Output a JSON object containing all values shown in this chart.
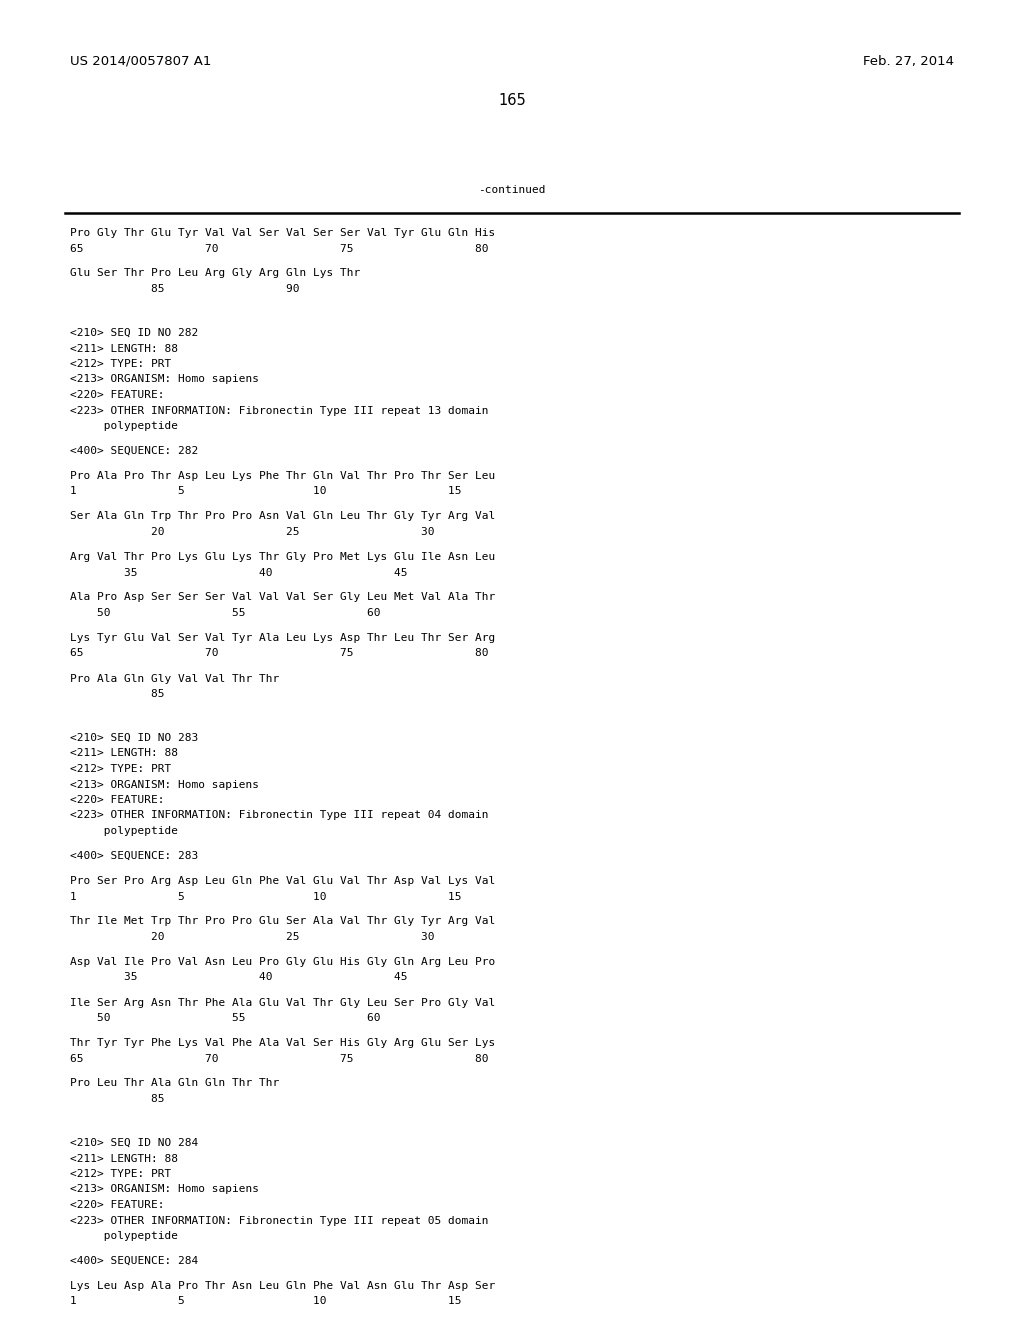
{
  "header_left": "US 2014/0057807 A1",
  "header_right": "Feb. 27, 2014",
  "page_number": "165",
  "continued_label": "-continued",
  "background_color": "#ffffff",
  "text_color": "#000000",
  "font_size": 8.0,
  "header_font_size": 9.5,
  "page_num_font_size": 10.5,
  "content": [
    {
      "type": "seq_line",
      "text": "Pro Gly Thr Glu Tyr Val Val Ser Val Ser Ser Val Tyr Glu Gln His"
    },
    {
      "type": "num_line",
      "text": "65                  70                  75                  80"
    },
    {
      "type": "blank"
    },
    {
      "type": "seq_line",
      "text": "Glu Ser Thr Pro Leu Arg Gly Arg Gln Lys Thr"
    },
    {
      "type": "num_line",
      "text": "            85                  90"
    },
    {
      "type": "blank"
    },
    {
      "type": "blank"
    },
    {
      "type": "blank"
    },
    {
      "type": "meta_line",
      "text": "<210> SEQ ID NO 282"
    },
    {
      "type": "meta_line",
      "text": "<211> LENGTH: 88"
    },
    {
      "type": "meta_line",
      "text": "<212> TYPE: PRT"
    },
    {
      "type": "meta_line",
      "text": "<213> ORGANISM: Homo sapiens"
    },
    {
      "type": "meta_line",
      "text": "<220> FEATURE:"
    },
    {
      "type": "meta_line",
      "text": "<223> OTHER INFORMATION: Fibronectin Type III repeat 13 domain"
    },
    {
      "type": "meta_line",
      "text": "     polypeptide"
    },
    {
      "type": "blank"
    },
    {
      "type": "meta_line",
      "text": "<400> SEQUENCE: 282"
    },
    {
      "type": "blank"
    },
    {
      "type": "seq_line",
      "text": "Pro Ala Pro Thr Asp Leu Lys Phe Thr Gln Val Thr Pro Thr Ser Leu"
    },
    {
      "type": "num_line",
      "text": "1               5                   10                  15"
    },
    {
      "type": "blank"
    },
    {
      "type": "seq_line",
      "text": "Ser Ala Gln Trp Thr Pro Pro Asn Val Gln Leu Thr Gly Tyr Arg Val"
    },
    {
      "type": "num_line",
      "text": "            20                  25                  30"
    },
    {
      "type": "blank"
    },
    {
      "type": "seq_line",
      "text": "Arg Val Thr Pro Lys Glu Lys Thr Gly Pro Met Lys Glu Ile Asn Leu"
    },
    {
      "type": "num_line",
      "text": "        35                  40                  45"
    },
    {
      "type": "blank"
    },
    {
      "type": "seq_line",
      "text": "Ala Pro Asp Ser Ser Ser Val Val Val Ser Gly Leu Met Val Ala Thr"
    },
    {
      "type": "num_line",
      "text": "    50                  55                  60"
    },
    {
      "type": "blank"
    },
    {
      "type": "seq_line",
      "text": "Lys Tyr Glu Val Ser Val Tyr Ala Leu Lys Asp Thr Leu Thr Ser Arg"
    },
    {
      "type": "num_line",
      "text": "65                  70                  75                  80"
    },
    {
      "type": "blank"
    },
    {
      "type": "seq_line",
      "text": "Pro Ala Gln Gly Val Val Thr Thr"
    },
    {
      "type": "num_line",
      "text": "            85"
    },
    {
      "type": "blank"
    },
    {
      "type": "blank"
    },
    {
      "type": "blank"
    },
    {
      "type": "meta_line",
      "text": "<210> SEQ ID NO 283"
    },
    {
      "type": "meta_line",
      "text": "<211> LENGTH: 88"
    },
    {
      "type": "meta_line",
      "text": "<212> TYPE: PRT"
    },
    {
      "type": "meta_line",
      "text": "<213> ORGANISM: Homo sapiens"
    },
    {
      "type": "meta_line",
      "text": "<220> FEATURE:"
    },
    {
      "type": "meta_line",
      "text": "<223> OTHER INFORMATION: Fibronectin Type III repeat 04 domain"
    },
    {
      "type": "meta_line",
      "text": "     polypeptide"
    },
    {
      "type": "blank"
    },
    {
      "type": "meta_line",
      "text": "<400> SEQUENCE: 283"
    },
    {
      "type": "blank"
    },
    {
      "type": "seq_line",
      "text": "Pro Ser Pro Arg Asp Leu Gln Phe Val Glu Val Thr Asp Val Lys Val"
    },
    {
      "type": "num_line",
      "text": "1               5                   10                  15"
    },
    {
      "type": "blank"
    },
    {
      "type": "seq_line",
      "text": "Thr Ile Met Trp Thr Pro Pro Glu Ser Ala Val Thr Gly Tyr Arg Val"
    },
    {
      "type": "num_line",
      "text": "            20                  25                  30"
    },
    {
      "type": "blank"
    },
    {
      "type": "seq_line",
      "text": "Asp Val Ile Pro Val Asn Leu Pro Gly Glu His Gly Gln Arg Leu Pro"
    },
    {
      "type": "num_line",
      "text": "        35                  40                  45"
    },
    {
      "type": "blank"
    },
    {
      "type": "seq_line",
      "text": "Ile Ser Arg Asn Thr Phe Ala Glu Val Thr Gly Leu Ser Pro Gly Val"
    },
    {
      "type": "num_line",
      "text": "    50                  55                  60"
    },
    {
      "type": "blank"
    },
    {
      "type": "seq_line",
      "text": "Thr Tyr Tyr Phe Lys Val Phe Ala Val Ser His Gly Arg Glu Ser Lys"
    },
    {
      "type": "num_line",
      "text": "65                  70                  75                  80"
    },
    {
      "type": "blank"
    },
    {
      "type": "seq_line",
      "text": "Pro Leu Thr Ala Gln Gln Thr Thr"
    },
    {
      "type": "num_line",
      "text": "            85"
    },
    {
      "type": "blank"
    },
    {
      "type": "blank"
    },
    {
      "type": "blank"
    },
    {
      "type": "meta_line",
      "text": "<210> SEQ ID NO 284"
    },
    {
      "type": "meta_line",
      "text": "<211> LENGTH: 88"
    },
    {
      "type": "meta_line",
      "text": "<212> TYPE: PRT"
    },
    {
      "type": "meta_line",
      "text": "<213> ORGANISM: Homo sapiens"
    },
    {
      "type": "meta_line",
      "text": "<220> FEATURE:"
    },
    {
      "type": "meta_line",
      "text": "<223> OTHER INFORMATION: Fibronectin Type III repeat 05 domain"
    },
    {
      "type": "meta_line",
      "text": "     polypeptide"
    },
    {
      "type": "blank"
    },
    {
      "type": "meta_line",
      "text": "<400> SEQUENCE: 284"
    },
    {
      "type": "blank"
    },
    {
      "type": "seq_line",
      "text": "Lys Leu Asp Ala Pro Thr Asn Leu Gln Phe Val Asn Glu Thr Asp Ser"
    },
    {
      "type": "num_line",
      "text": "1               5                   10                  15"
    }
  ]
}
